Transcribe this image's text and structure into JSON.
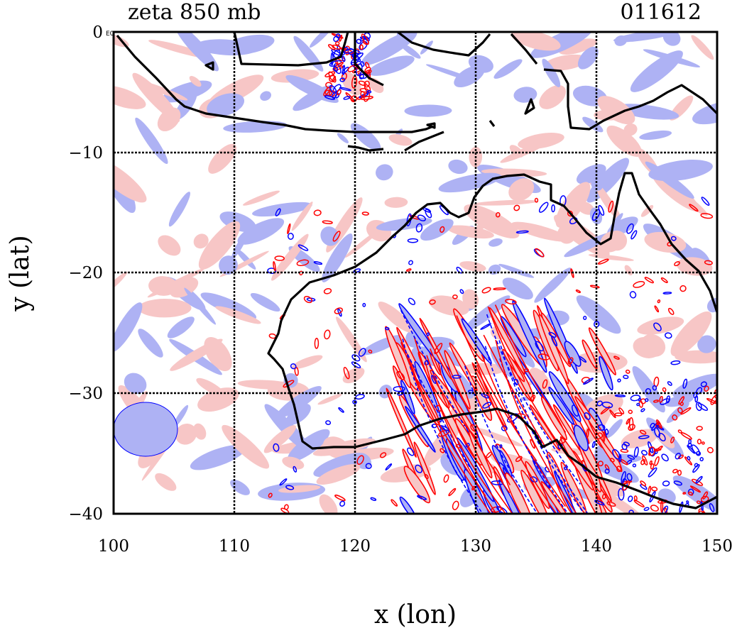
{
  "chart_data": {
    "type": "heatmap",
    "title_left": "zeta 850 mb",
    "title_right": "011612",
    "xlabel": "x (lon)",
    "ylabel": "y (lat)",
    "xlim": [
      100,
      150
    ],
    "ylim": [
      -40,
      0
    ],
    "xticks": [
      100,
      110,
      120,
      130,
      140,
      150
    ],
    "yticks": [
      0,
      -10,
      -20,
      -30,
      -40
    ],
    "xtick_labels": [
      "100",
      "110",
      "120",
      "130",
      "140",
      "150"
    ],
    "ytick_labels": [
      "0",
      "−10",
      "−20",
      "−30",
      "−40"
    ],
    "corner_label": "E0",
    "grid": true,
    "colors": {
      "positive_fill": "#f7c6c6",
      "negative_fill": "#aeb2f4",
      "positive_contour": "#ff0000",
      "negative_contour": "#0000ff",
      "coastline": "#000000"
    }
  }
}
